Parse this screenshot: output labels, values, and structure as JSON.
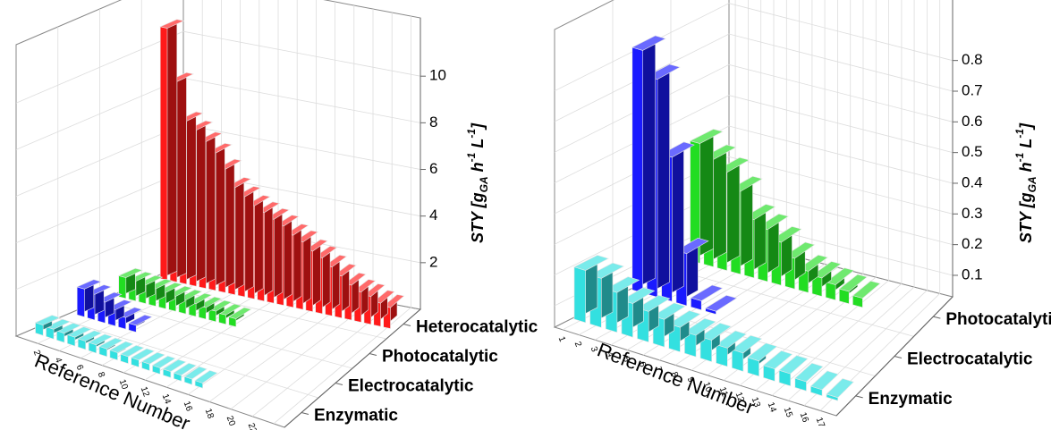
{
  "chart_data": [
    {
      "type": "bar3d",
      "x": [
        1,
        2,
        3,
        4,
        5,
        6,
        7,
        8,
        9,
        10,
        11,
        12,
        13,
        14,
        15,
        16,
        17,
        18,
        19,
        20,
        21,
        22,
        23,
        24
      ],
      "xlim": [
        0,
        25
      ],
      "xticks": [
        2,
        4,
        6,
        8,
        10,
        12,
        14,
        16,
        18,
        20,
        22,
        24
      ],
      "xlabel": "Reference Number",
      "zlim": [
        0,
        12.5
      ],
      "zticks": [
        2,
        4,
        6,
        8,
        10
      ],
      "zlabel": [
        "STY [",
        "g",
        "GA",
        " h",
        "-1",
        " L",
        "-1",
        "]"
      ],
      "series": [
        {
          "name": "Enzymatic",
          "color": "#33e0e0",
          "values": [
            0.45,
            0.42,
            0.4,
            0.38,
            0.36,
            0.35,
            0.33,
            0.32,
            0.3,
            0.3,
            0.28,
            0.27,
            0.26,
            0.25,
            0.24,
            0.22,
            null,
            null,
            null,
            null,
            null,
            null,
            null,
            null
          ]
        },
        {
          "name": "Electrocatalytic",
          "color": "#1a1aff",
          "values": [
            1.2,
            1.1,
            0.9,
            0.7,
            0.5,
            0.3,
            null,
            null,
            null,
            null,
            null,
            null,
            null,
            null,
            null,
            null,
            null,
            null,
            null,
            null,
            null,
            null,
            null,
            null
          ]
        },
        {
          "name": "Photocatalytic",
          "color": "#22dd22",
          "values": [
            0.9,
            0.85,
            0.8,
            0.75,
            0.7,
            0.65,
            0.6,
            0.55,
            0.5,
            0.45,
            0.4,
            0.35,
            null,
            null,
            null,
            null,
            null,
            null,
            null,
            null,
            null,
            null,
            null,
            null
          ]
        },
        {
          "name": "Heterocatalytic",
          "color": "#ff1a1a",
          "values": [
            10.8,
            8.6,
            7.0,
            6.7,
            6.3,
            5.9,
            5.3,
            4.6,
            4.3,
            4.0,
            3.8,
            3.6,
            3.4,
            3.1,
            2.9,
            2.6,
            2.4,
            2.1,
            1.8,
            1.5,
            1.3,
            1.2,
            1.0,
            0.9
          ]
        }
      ]
    },
    {
      "type": "bar3d",
      "x": [
        1,
        2,
        3,
        4,
        5,
        6,
        7,
        8,
        9,
        10,
        11,
        12,
        13,
        14,
        15,
        16,
        17
      ],
      "xlim": [
        0.5,
        18
      ],
      "xticks": [
        1,
        2,
        3,
        4,
        5,
        6,
        7,
        8,
        9,
        10,
        11,
        12,
        13,
        14,
        15,
        16,
        17
      ],
      "xlabel": "Reference Number",
      "zlim": [
        0.03,
        1.0
      ],
      "zticks": [
        0.1,
        0.2,
        0.3,
        0.4,
        0.5,
        0.6,
        0.7,
        0.8
      ],
      "zlabel": [
        "STY [",
        "g",
        "GA",
        " h",
        "-1",
        " L",
        "-1",
        "]"
      ],
      "series": [
        {
          "name": "Enzymatic",
          "color": "#33e0e0",
          "values": [
            0.2,
            0.19,
            0.16,
            0.14,
            0.13,
            0.12,
            0.11,
            0.1,
            0.1,
            0.09,
            0.09,
            0.08,
            0.07,
            0.07,
            0.06,
            0.05,
            0.04
          ]
        },
        {
          "name": "Electrocatalytic",
          "color": "#1a1aff",
          "values": [
            0.82,
            0.74,
            0.5,
            0.2,
            0.06,
            0.04,
            null,
            null,
            null,
            null,
            null,
            null,
            null,
            null,
            null,
            null,
            null
          ]
        },
        {
          "name": "Photocatalytic",
          "color": "#22dd22",
          "values": [
            0.42,
            0.38,
            0.35,
            0.3,
            0.22,
            0.2,
            0.17,
            0.13,
            0.1,
            0.09,
            0.08,
            0.07,
            0.06,
            null,
            null,
            null,
            null
          ]
        }
      ]
    }
  ]
}
